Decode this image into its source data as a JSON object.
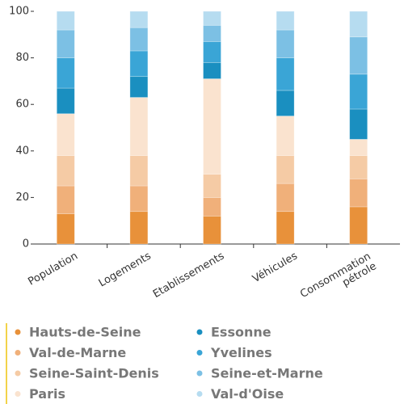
{
  "chart_data": {
    "type": "stacked-bar",
    "categories": [
      "Population",
      "Logements",
      "Etablissements",
      "Véhicules",
      "Consommation pétrole"
    ],
    "series": [
      {
        "name": "Hauts-de-Seine",
        "color": "#e8913a",
        "values": [
          13,
          14,
          12,
          14,
          16
        ]
      },
      {
        "name": "Val-de-Marne",
        "color": "#f0b07a",
        "values": [
          12,
          11,
          8,
          12,
          12
        ]
      },
      {
        "name": "Seine-Saint-Denis",
        "color": "#f5cba5",
        "values": [
          13,
          13,
          10,
          12,
          10
        ]
      },
      {
        "name": "Paris",
        "color": "#fae3cf",
        "values": [
          18,
          25,
          41,
          17,
          7
        ]
      },
      {
        "name": "Essonne",
        "color": "#1a8fc0",
        "values": [
          11,
          9,
          7,
          11,
          13
        ]
      },
      {
        "name": "Yvelines",
        "color": "#3aa5d6",
        "values": [
          13,
          11,
          9,
          14,
          15
        ]
      },
      {
        "name": "Seine-et-Marne",
        "color": "#7cc0e4",
        "values": [
          12,
          10,
          7,
          12,
          16
        ]
      },
      {
        "name": "Val-d'Oise",
        "color": "#b6dcf0",
        "values": [
          8,
          7,
          6,
          8,
          11
        ]
      }
    ],
    "ylim": [
      0,
      100
    ],
    "yticks": [
      0,
      20,
      40,
      60,
      80,
      100
    ]
  }
}
